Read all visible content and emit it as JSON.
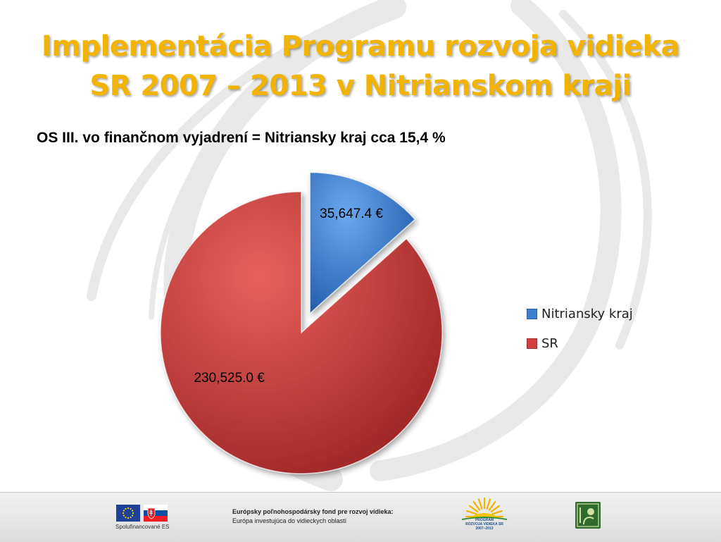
{
  "slide": {
    "title_line1": "Implementácia Programu rozvoja vidieka",
    "title_line2": "SR 2007 – 2013 v Nitrianskom kraji",
    "subtitle": "OS III. vo finančnom vyjadrení = Nitriansky kraj cca 15,4 %"
  },
  "chart_data": {
    "type": "pie",
    "title": "",
    "categories": [
      "Nitriansky kraj",
      "SR"
    ],
    "values": [
      35647.4,
      230525.0
    ],
    "data_labels": [
      "35,647.4 €",
      "230,525.0 €"
    ],
    "colors": [
      "#3f7fd0",
      "#d33f3f"
    ],
    "exploded": [
      true,
      false
    ],
    "legend_position": "right"
  },
  "footer": {
    "eu_caption": "Spolufinancované ES",
    "fund_line1": "Európsky poľnohospodársky fond pre rozvoj vidieka:",
    "fund_line2": "Európa investujúca do vidieckych oblastí",
    "program_line1": "PROGRAM",
    "program_line2": "ROZVOJA VIDIEKA SR",
    "program_line3": "2007–2013",
    "leader_logo": "leader-logo",
    "eu_flag": "eu-flag-icon",
    "sk_flag": "slovak-flag-icon"
  }
}
